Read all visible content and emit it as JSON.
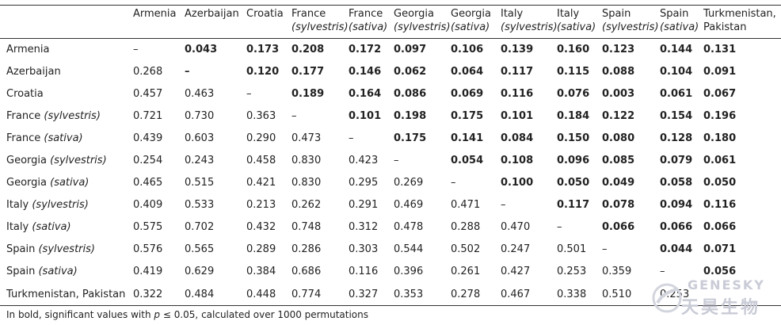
{
  "caption_fragment": "",
  "columns": [
    {
      "line1": "Armenia",
      "line2": "",
      "italic2": false
    },
    {
      "line1": "Azerbaijan",
      "line2": "",
      "italic2": false
    },
    {
      "line1": "Croatia",
      "line2": "",
      "italic2": false
    },
    {
      "line1": "France",
      "line2": "(sylvestris)",
      "italic2": true
    },
    {
      "line1": "France",
      "line2": "(sativa)",
      "italic2": true
    },
    {
      "line1": "Georgia",
      "line2": "(sylvestris)",
      "italic2": true
    },
    {
      "line1": "Georgia",
      "line2": "(sativa)",
      "italic2": true
    },
    {
      "line1": "Italy",
      "line2": "(sylvestris)",
      "italic2": true
    },
    {
      "line1": "Italy",
      "line2": "(sativa)",
      "italic2": true
    },
    {
      "line1": "Spain",
      "line2": "(sylvestris)",
      "italic2": true
    },
    {
      "line1": "Spain",
      "line2": "(sativa)",
      "italic2": true
    },
    {
      "line1": "Turkmenistan,",
      "line2": "Pakistan",
      "italic2": false
    }
  ],
  "rows": [
    {
      "name": "Armenia",
      "variety": "",
      "values": [
        "–",
        "0.043",
        "0.173",
        "0.208",
        "0.172",
        "0.097",
        "0.106",
        "0.139",
        "0.160",
        "0.123",
        "0.144",
        "0.131"
      ],
      "bold": [
        false,
        true,
        true,
        true,
        true,
        true,
        true,
        true,
        true,
        true,
        true,
        true
      ]
    },
    {
      "name": "Azerbaijan",
      "variety": "",
      "values": [
        "0.268",
        "–",
        "0.120",
        "0.177",
        "0.146",
        "0.062",
        "0.064",
        "0.117",
        "0.115",
        "0.088",
        "0.104",
        "0.091"
      ],
      "bold": [
        false,
        true,
        true,
        true,
        true,
        true,
        true,
        true,
        true,
        true,
        true,
        true
      ]
    },
    {
      "name": "Croatia",
      "variety": "",
      "values": [
        "0.457",
        "0.463",
        "–",
        "0.189",
        "0.164",
        "0.086",
        "0.069",
        "0.116",
        "0.076",
        "0.003",
        "0.061",
        "0.067"
      ],
      "bold": [
        false,
        false,
        false,
        true,
        true,
        true,
        true,
        true,
        true,
        true,
        true,
        true
      ]
    },
    {
      "name": "France",
      "variety": "(sylvestris)",
      "values": [
        "0.721",
        "0.730",
        "0.363",
        "–",
        "0.101",
        "0.198",
        "0.175",
        "0.101",
        "0.184",
        "0.122",
        "0.154",
        "0.196"
      ],
      "bold": [
        false,
        false,
        false,
        false,
        true,
        true,
        true,
        true,
        true,
        true,
        true,
        true
      ]
    },
    {
      "name": "France",
      "variety": "(sativa)",
      "values": [
        "0.439",
        "0.603",
        "0.290",
        "0.473",
        "–",
        "0.175",
        "0.141",
        "0.084",
        "0.150",
        "0.080",
        "0.128",
        "0.180"
      ],
      "bold": [
        false,
        false,
        false,
        false,
        false,
        true,
        true,
        true,
        true,
        true,
        true,
        true
      ]
    },
    {
      "name": "Georgia",
      "variety": "(sylvestris)",
      "values": [
        "0.254",
        "0.243",
        "0.458",
        "0.830",
        "0.423",
        "–",
        "0.054",
        "0.108",
        "0.096",
        "0.085",
        "0.079",
        "0.061"
      ],
      "bold": [
        false,
        false,
        false,
        false,
        false,
        false,
        true,
        true,
        true,
        true,
        true,
        true
      ]
    },
    {
      "name": "Georgia",
      "variety": "(sativa)",
      "values": [
        "0.465",
        "0.515",
        "0.421",
        "0.830",
        "0.295",
        "0.269",
        "–",
        "0.100",
        "0.050",
        "0.049",
        "0.058",
        "0.050"
      ],
      "bold": [
        false,
        false,
        false,
        false,
        false,
        false,
        false,
        true,
        true,
        true,
        true,
        true
      ]
    },
    {
      "name": "Italy",
      "variety": "(sylvestris)",
      "values": [
        "0.409",
        "0.533",
        "0.213",
        "0.262",
        "0.291",
        "0.469",
        "0.471",
        "–",
        "0.117",
        "0.078",
        "0.094",
        "0.116"
      ],
      "bold": [
        false,
        false,
        false,
        false,
        false,
        false,
        false,
        false,
        true,
        true,
        true,
        true
      ]
    },
    {
      "name": "Italy",
      "variety": "(sativa)",
      "values": [
        "0.575",
        "0.702",
        "0.432",
        "0.748",
        "0.312",
        "0.478",
        "0.288",
        "0.470",
        "–",
        "0.066",
        "0.066",
        "0.066"
      ],
      "bold": [
        false,
        false,
        false,
        false,
        false,
        false,
        false,
        false,
        false,
        true,
        true,
        true
      ]
    },
    {
      "name": "Spain",
      "variety": "(sylvestris)",
      "values": [
        "0.576",
        "0.565",
        "0.289",
        "0.286",
        "0.303",
        "0.544",
        "0.502",
        "0.247",
        "0.501",
        "–",
        "0.044",
        "0.071"
      ],
      "bold": [
        false,
        false,
        false,
        false,
        false,
        false,
        false,
        false,
        false,
        false,
        true,
        true
      ]
    },
    {
      "name": "Spain",
      "variety": "(sativa)",
      "values": [
        "0.419",
        "0.629",
        "0.384",
        "0.686",
        "0.116",
        "0.396",
        "0.261",
        "0.427",
        "0.253",
        "0.359",
        "–",
        "0.056"
      ],
      "bold": [
        false,
        false,
        false,
        false,
        false,
        false,
        false,
        false,
        false,
        false,
        false,
        true
      ]
    },
    {
      "name": "Turkmenistan, Pakistan",
      "variety": "",
      "values": [
        "0.322",
        "0.484",
        "0.448",
        "0.774",
        "0.327",
        "0.353",
        "0.278",
        "0.467",
        "0.338",
        "0.510",
        "0.253",
        ""
      ],
      "bold": [
        false,
        false,
        false,
        false,
        false,
        false,
        false,
        false,
        false,
        false,
        false,
        false
      ]
    }
  ],
  "footnote_parts": [
    "In bold, significant values with ",
    "p",
    " ≤ 0.05, calculated over 1000 permutations"
  ],
  "watermark": {
    "line1": "GENESKY",
    "line2": "天昊生物"
  }
}
